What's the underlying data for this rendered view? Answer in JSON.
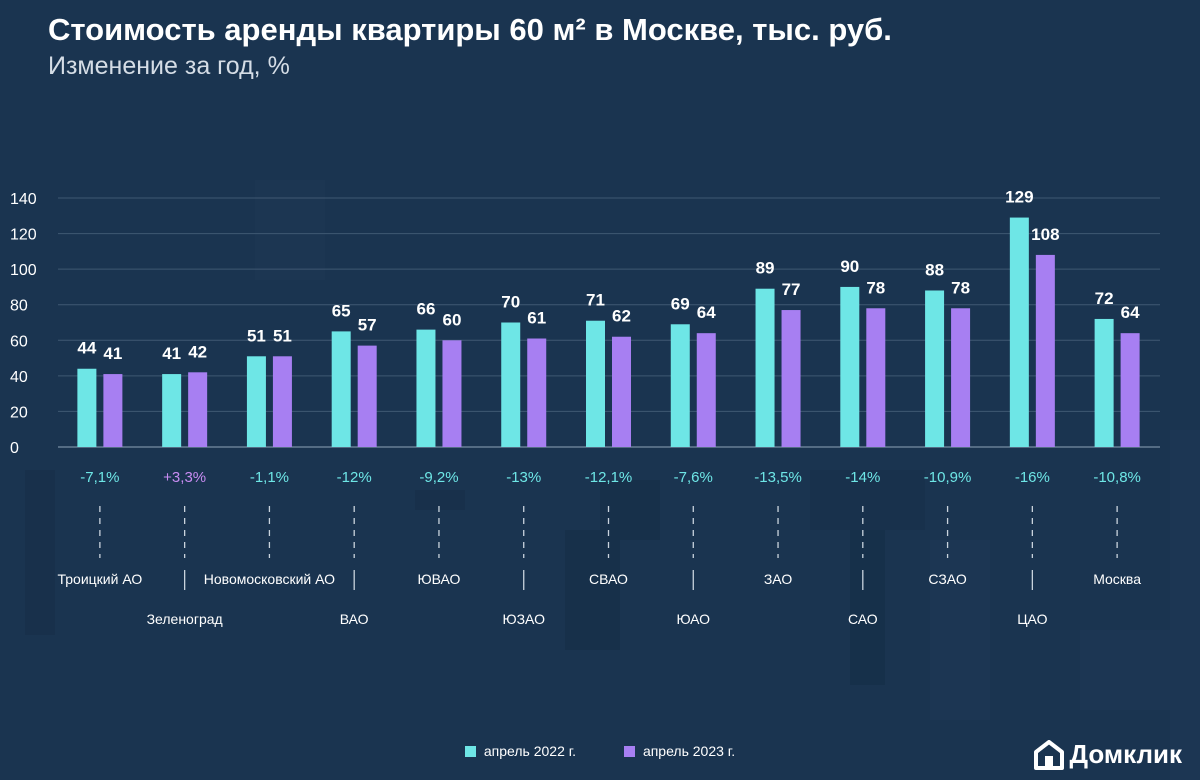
{
  "title": "Стоимость аренды квартиры 60 м² в Москве, тыс. руб.",
  "subtitle": "Изменение за год, %",
  "legend": {
    "item_2022": "апрель 2022 г.",
    "item_2023": "апрель 2023 г."
  },
  "logo": {
    "text": "Домклик",
    "icon": "house-logo-icon"
  },
  "colors": {
    "series_2022": "#6ee6e6",
    "series_2023": "#a77ff2",
    "change_negative": "#6ee6e6",
    "change_positive": "#c88cf2",
    "background": "#1a3450"
  },
  "chart_data": {
    "type": "bar",
    "title": "Стоимость аренды квартиры 60 м² в Москве, тыс. руб.",
    "subtitle": "Изменение за год, %",
    "categories": [
      "Троицкий АО",
      "Зеленоград",
      "Новомосковский АО",
      "ВАО",
      "ЮВАО",
      "ЮЗАО",
      "СВАО",
      "ЮАО",
      "ЗАО",
      "САО",
      "СЗАО",
      "ЦАО",
      "Москва"
    ],
    "series": [
      {
        "name": "апрель 2022 г.",
        "values": [
          44,
          41,
          51,
          65,
          66,
          70,
          71,
          69,
          89,
          90,
          88,
          129,
          72
        ]
      },
      {
        "name": "апрель 2023 г.",
        "values": [
          41,
          42,
          51,
          57,
          60,
          61,
          62,
          64,
          77,
          78,
          78,
          108,
          64
        ]
      }
    ],
    "changes": [
      "-7,1%",
      "+3,3%",
      "-1,1%",
      "-12%",
      "-9,2%",
      "-13%",
      "-12,1%",
      "-7,6%",
      "-13,5%",
      "-14%",
      "-10,9%",
      "-16%",
      "-10,8%"
    ],
    "ylim": [
      0,
      140
    ],
    "yticks": [
      0,
      20,
      40,
      60,
      80,
      100,
      120,
      140
    ],
    "grid": true,
    "legend_position": "bottom"
  }
}
